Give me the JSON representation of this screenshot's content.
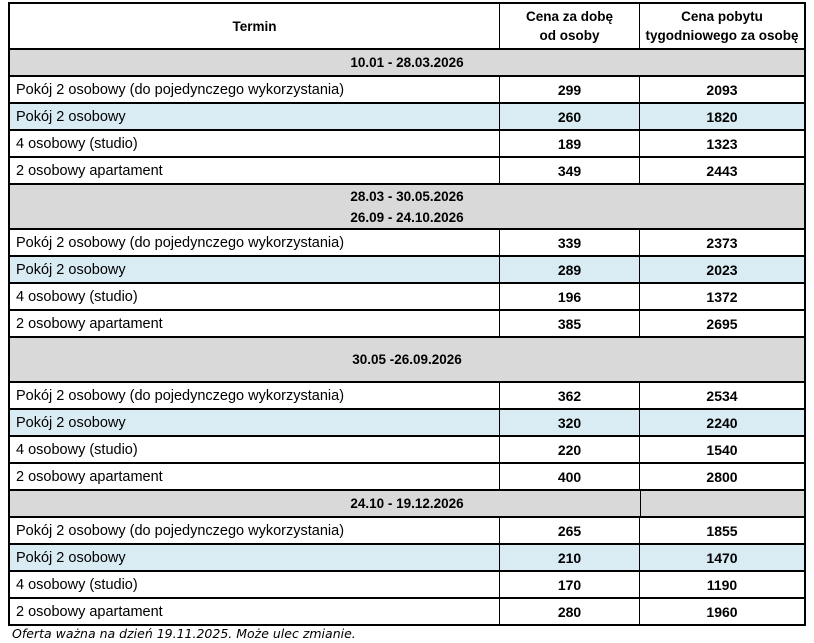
{
  "header": {
    "col_termin": "Termin",
    "col_daily_line1": "Cena za dobę",
    "col_daily_line2": "od osoby",
    "col_weekly_line1": "Cena pobytu",
    "col_weekly_line2": "tygodniowego za osobę"
  },
  "sections": [
    {
      "dates": [
        "10.01 - 28.03.2026"
      ],
      "rows": [
        {
          "label": "Pokój 2 osobowy (do pojedynczego wykorzystania)",
          "daily": "299",
          "weekly": "2093"
        },
        {
          "label": "Pokój 2 osobowy",
          "daily": "260",
          "weekly": "1820"
        },
        {
          "label": "4 osobowy (studio)",
          "daily": "189",
          "weekly": "1323"
        },
        {
          "label": "2 osobowy apartament",
          "daily": "349",
          "weekly": "2443"
        }
      ]
    },
    {
      "dates": [
        "28.03 - 30.05.2026",
        "26.09 - 24.10.2026"
      ],
      "rows": [
        {
          "label": "Pokój 2 osobowy (do pojedynczego wykorzystania)",
          "daily": "339",
          "weekly": "2373"
        },
        {
          "label": "Pokój 2 osobowy",
          "daily": "289",
          "weekly": "2023"
        },
        {
          "label": "4 osobowy (studio)",
          "daily": "196",
          "weekly": "1372"
        },
        {
          "label": "2 osobowy apartament",
          "daily": "385",
          "weekly": "2695"
        }
      ]
    },
    {
      "dates": [
        "30.05 -26.09.2026"
      ],
      "rows": [
        {
          "label": "Pokój 2 osobowy (do pojedynczego wykorzystania)",
          "daily": "362",
          "weekly": "2534"
        },
        {
          "label": "Pokój 2 osobowy",
          "daily": "320",
          "weekly": "2240"
        },
        {
          "label": "4 osobowy (studio)",
          "daily": "220",
          "weekly": "1540"
        },
        {
          "label": "2 osobowy apartament",
          "daily": "400",
          "weekly": "2800"
        }
      ]
    },
    {
      "dates": [
        "24.10 - 19.12.2026"
      ],
      "rows": [
        {
          "label": "Pokój 2 osobowy (do pojedynczego wykorzystania)",
          "daily": "265",
          "weekly": "1855"
        },
        {
          "label": "Pokój 2 osobowy",
          "daily": "210",
          "weekly": "1470"
        },
        {
          "label": "4 osobowy (studio)",
          "daily": "170",
          "weekly": "1190"
        },
        {
          "label": "2 osobowy apartament",
          "daily": "280",
          "weekly": "1960"
        }
      ]
    }
  ],
  "footer": "Oferta ważna na dzień 19.11.2025. Może ulec zmianie.",
  "colors": {
    "section_header_bg": "#d9d9d9",
    "highlight_row_bg": "#daecf3",
    "border": "#000000"
  }
}
